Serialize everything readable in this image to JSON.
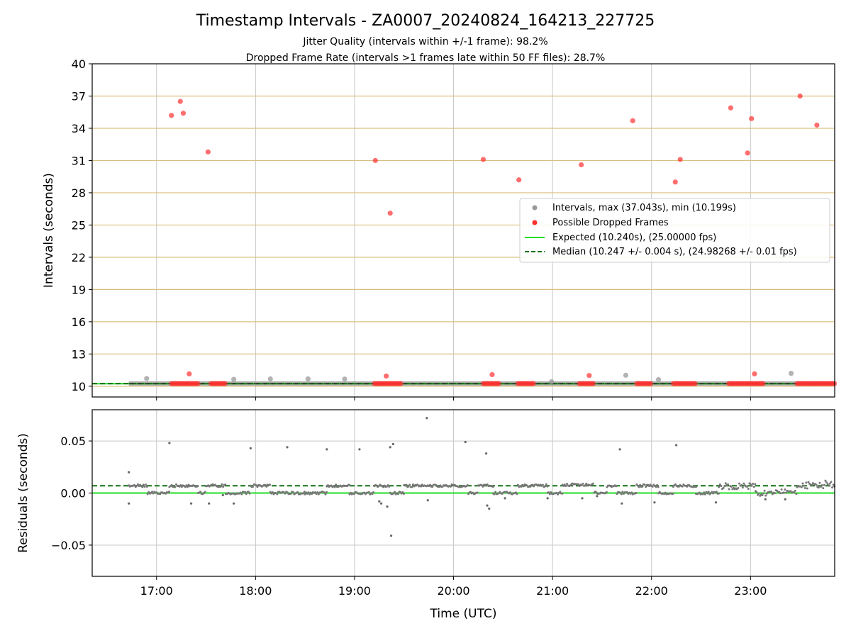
{
  "chart_data": [
    {
      "type": "scatter",
      "title": "Timestamp Intervals - ZA0007_20240824_164213_227725",
      "subtitle_lines": [
        "Jitter Quality (intervals within +/-1 frame): 98.2%",
        "Dropped Frame Rate (intervals >1 frames late within 50 FF files): 28.7%"
      ],
      "ylabel": "Intervals (seconds)",
      "xlim": [
        16.35,
        23.85
      ],
      "ylim": [
        9,
        40
      ],
      "yticks": [
        10,
        13,
        16,
        19,
        22,
        25,
        28,
        31,
        34,
        37,
        40
      ],
      "grid": true,
      "legend_position": "center-right",
      "colors": {
        "intervals": "#999999",
        "dropped": "#ff3030",
        "expected": "#22dd22",
        "median": "#127012",
        "hgrid": "#d8c07e"
      },
      "legend": [
        "Intervals, max (37.043s), min (10.199s)",
        "Possible Dropped Frames",
        "Expected (10.240s), (25.00000 fps)",
        "Median (10.247 +/- 0.004 s), (24.98268 +/- 0.01 fps)"
      ],
      "expected_value": 10.24,
      "median_value": 10.247,
      "baseline_band": {
        "x_start": 16.72,
        "x_end": 23.85,
        "y": 10.25
      },
      "series": [
        {
          "name": "Intervals, max (37.043s), min (10.199s)",
          "points": [
            [
              16.9,
              10.72
            ],
            [
              17.78,
              10.64
            ],
            [
              18.15,
              10.68
            ],
            [
              18.53,
              10.68
            ],
            [
              18.9,
              10.67
            ],
            [
              20.99,
              10.42
            ],
            [
              21.74,
              11.02
            ],
            [
              22.07,
              10.62
            ],
            [
              23.41,
              11.2
            ]
          ]
        },
        {
          "name": "Possible Dropped Frames",
          "points": [
            [
              17.15,
              35.2
            ],
            [
              17.24,
              36.5
            ],
            [
              17.27,
              35.4
            ],
            [
              17.33,
              11.15
            ],
            [
              17.52,
              31.8
            ],
            [
              19.21,
              31.0
            ],
            [
              19.32,
              10.95
            ],
            [
              19.36,
              26.1
            ],
            [
              20.3,
              31.1
            ],
            [
              20.39,
              11.08
            ],
            [
              20.66,
              29.2
            ],
            [
              21.29,
              30.6
            ],
            [
              21.37,
              11.0
            ],
            [
              21.81,
              34.7
            ],
            [
              22.24,
              29.0
            ],
            [
              22.29,
              31.1
            ],
            [
              22.8,
              35.9
            ],
            [
              22.97,
              31.7
            ],
            [
              23.01,
              34.9
            ],
            [
              23.04,
              11.15
            ],
            [
              23.5,
              37.0
            ],
            [
              23.67,
              34.3
            ]
          ],
          "dropped_clusters_at_baseline": [
            [
              17.15,
              17.42
            ],
            [
              17.55,
              17.7
            ],
            [
              19.2,
              19.47
            ],
            [
              20.3,
              20.47
            ],
            [
              20.65,
              20.82
            ],
            [
              21.27,
              21.42
            ],
            [
              21.85,
              22.0
            ],
            [
              22.22,
              22.45
            ],
            [
              22.78,
              23.14
            ],
            [
              23.47,
              23.85
            ]
          ]
        }
      ]
    },
    {
      "type": "scatter",
      "xlabel": "Time (UTC)",
      "ylabel": "Residuals (seconds)",
      "xlim": [
        16.35,
        23.85
      ],
      "ylim": [
        -0.08,
        0.08
      ],
      "xticks": [
        "17:00",
        "18:00",
        "19:00",
        "20:00",
        "21:00",
        "22:00",
        "23:00"
      ],
      "xtick_values": [
        17,
        18,
        19,
        20,
        21,
        22,
        23
      ],
      "yticks": [
        "0.05",
        "0.00",
        "−0.05"
      ],
      "ytick_values": [
        0.05,
        0.0,
        -0.05
      ],
      "grid": true,
      "expected_line": 0.0,
      "median_line": 0.007,
      "residual_segments": [
        {
          "x_start": 16.72,
          "x_end": 16.91,
          "level": 0.007
        },
        {
          "x_start": 16.91,
          "x_end": 17.13,
          "level": 0.0
        },
        {
          "x_start": 17.13,
          "x_end": 17.42,
          "level": 0.007
        },
        {
          "x_start": 17.42,
          "x_end": 17.5,
          "level": 0.0
        },
        {
          "x_start": 17.5,
          "x_end": 17.7,
          "level": 0.007
        },
        {
          "x_start": 17.7,
          "x_end": 17.95,
          "level": 0.0
        },
        {
          "x_start": 17.95,
          "x_end": 18.15,
          "level": 0.007
        },
        {
          "x_start": 18.15,
          "x_end": 18.5,
          "level": 0.0
        },
        {
          "x_start": 18.5,
          "x_end": 18.72,
          "level": 0.0
        },
        {
          "x_start": 18.72,
          "x_end": 18.95,
          "level": 0.007
        },
        {
          "x_start": 18.95,
          "x_end": 19.2,
          "level": 0.0
        },
        {
          "x_start": 19.2,
          "x_end": 19.36,
          "level": 0.007
        },
        {
          "x_start": 19.36,
          "x_end": 19.5,
          "level": 0.0
        },
        {
          "x_start": 19.5,
          "x_end": 20.15,
          "level": 0.007
        },
        {
          "x_start": 20.15,
          "x_end": 20.25,
          "level": 0.0
        },
        {
          "x_start": 20.25,
          "x_end": 20.4,
          "level": 0.007
        },
        {
          "x_start": 20.4,
          "x_end": 20.65,
          "level": 0.0
        },
        {
          "x_start": 20.65,
          "x_end": 20.95,
          "level": 0.007
        },
        {
          "x_start": 20.95,
          "x_end": 21.1,
          "level": 0.0
        },
        {
          "x_start": 21.1,
          "x_end": 21.42,
          "level": 0.008
        },
        {
          "x_start": 21.42,
          "x_end": 21.55,
          "level": 0.0
        },
        {
          "x_start": 21.55,
          "x_end": 21.65,
          "level": 0.007
        },
        {
          "x_start": 21.65,
          "x_end": 21.85,
          "level": 0.0
        },
        {
          "x_start": 21.85,
          "x_end": 22.07,
          "level": 0.007
        },
        {
          "x_start": 22.07,
          "x_end": 22.22,
          "level": 0.0
        },
        {
          "x_start": 22.22,
          "x_end": 22.45,
          "level": 0.007
        },
        {
          "x_start": 22.45,
          "x_end": 22.68,
          "level": 0.0
        },
        {
          "x_start": 22.68,
          "x_end": 23.05,
          "level": 0.007
        },
        {
          "x_start": 23.05,
          "x_end": 23.47,
          "level": 0.0
        },
        {
          "x_start": 23.47,
          "x_end": 23.85,
          "level": 0.008
        }
      ],
      "outliers": [
        [
          16.72,
          0.02
        ],
        [
          16.72,
          -0.01
        ],
        [
          17.13,
          0.048
        ],
        [
          17.35,
          -0.01
        ],
        [
          17.53,
          -0.01
        ],
        [
          17.67,
          -0.002
        ],
        [
          17.78,
          -0.01
        ],
        [
          17.95,
          0.043
        ],
        [
          18.32,
          0.044
        ],
        [
          18.72,
          0.042
        ],
        [
          19.05,
          0.042
        ],
        [
          19.33,
          -0.013
        ],
        [
          19.36,
          0.044
        ],
        [
          19.39,
          0.047
        ],
        [
          19.37,
          -0.041
        ],
        [
          19.73,
          0.072
        ],
        [
          19.25,
          -0.008
        ],
        [
          19.27,
          -0.01
        ],
        [
          19.74,
          -0.007
        ],
        [
          20.12,
          0.049
        ],
        [
          20.33,
          0.038
        ],
        [
          20.34,
          -0.012
        ],
        [
          20.36,
          -0.015
        ],
        [
          20.52,
          -0.005
        ],
        [
          20.95,
          -0.005
        ],
        [
          21.3,
          -0.005
        ],
        [
          21.45,
          -0.003
        ],
        [
          21.68,
          0.042
        ],
        [
          21.7,
          -0.01
        ],
        [
          22.03,
          -0.009
        ],
        [
          22.25,
          0.046
        ],
        [
          22.65,
          -0.009
        ],
        [
          23.35,
          -0.006
        ],
        [
          23.15,
          -0.006
        ]
      ]
    }
  ]
}
